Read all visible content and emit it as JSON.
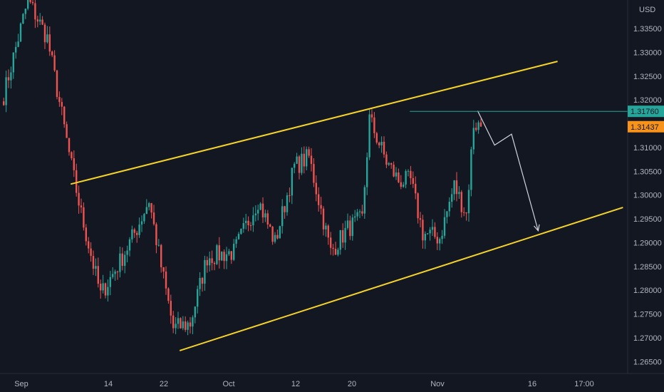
{
  "chart_data": {
    "type": "candlestick",
    "currency": "USD",
    "y_axis": {
      "ylim": [
        1.2625,
        1.341
      ],
      "tick_labels": [
        "1.33500",
        "1.33000",
        "1.32500",
        "1.32000",
        "1.31500",
        "1.31000",
        "1.30500",
        "1.30000",
        "1.29500",
        "1.29000",
        "1.28500",
        "1.28000",
        "1.27500",
        "1.27000",
        "1.26500"
      ],
      "tick_values": [
        1.335,
        1.33,
        1.325,
        1.32,
        1.315,
        1.31,
        1.305,
        1.3,
        1.295,
        1.29,
        1.285,
        1.28,
        1.275,
        1.27,
        1.265
      ]
    },
    "x_axis": {
      "tick_labels": [
        "Sep",
        "14",
        "22",
        "Oct",
        "12",
        "20",
        "Nov",
        "16",
        "17:00"
      ]
    },
    "price_tags": [
      {
        "value": "1.31760",
        "price": 1.3176,
        "color": "#26a69a"
      },
      {
        "value": "1.31437",
        "price": 1.31437,
        "color": "#f7931a"
      }
    ],
    "horizontal_line": {
      "price": 1.3176,
      "color": "#26a69a"
    },
    "colors": {
      "background": "#131722",
      "up": "#26a69a",
      "down": "#ef5350",
      "channel": "#f5d327",
      "projection": "#d1d4dc",
      "axis_text": "#b2b5be"
    },
    "channel": {
      "upper": {
        "start": {
          "bar": 28,
          "price": 1.3023
        },
        "end": {
          "bar": 229,
          "price": 1.3281
        }
      },
      "lower": {
        "start": {
          "bar": 73,
          "price": 1.2673
        },
        "end": {
          "bar": 256,
          "price": 1.2974
        }
      }
    },
    "projection": [
      {
        "bar": 196,
        "price": 1.3177
      },
      {
        "bar": 203,
        "price": 1.3105
      },
      {
        "bar": 210,
        "price": 1.3128
      },
      {
        "bar": 221,
        "price": 1.2925
      }
    ],
    "anchors": [
      {
        "bar": 0,
        "price": 1.321
      },
      {
        "bar": 10,
        "price": 1.341
      },
      {
        "bar": 18,
        "price": 1.333
      },
      {
        "bar": 28,
        "price": 1.306
      },
      {
        "bar": 32,
        "price": 1.296
      },
      {
        "bar": 40,
        "price": 1.279
      },
      {
        "bar": 48,
        "price": 1.286
      },
      {
        "bar": 55,
        "price": 1.293
      },
      {
        "bar": 60,
        "price": 1.299
      },
      {
        "bar": 65,
        "price": 1.285
      },
      {
        "bar": 70,
        "price": 1.272
      },
      {
        "bar": 77,
        "price": 1.273
      },
      {
        "bar": 84,
        "price": 1.287
      },
      {
        "bar": 95,
        "price": 1.288
      },
      {
        "bar": 105,
        "price": 1.299
      },
      {
        "bar": 112,
        "price": 1.29
      },
      {
        "bar": 120,
        "price": 1.306
      },
      {
        "bar": 126,
        "price": 1.308
      },
      {
        "bar": 135,
        "price": 1.288
      },
      {
        "bar": 142,
        "price": 1.293
      },
      {
        "bar": 148,
        "price": 1.295
      },
      {
        "bar": 151,
        "price": 1.316
      },
      {
        "bar": 158,
        "price": 1.307
      },
      {
        "bar": 163,
        "price": 1.303
      },
      {
        "bar": 168,
        "price": 1.303
      },
      {
        "bar": 173,
        "price": 1.292
      },
      {
        "bar": 180,
        "price": 1.291
      },
      {
        "bar": 186,
        "price": 1.302
      },
      {
        "bar": 191,
        "price": 1.296
      },
      {
        "bar": 194,
        "price": 1.315
      },
      {
        "bar": 197,
        "price": 1.3144
      }
    ]
  }
}
